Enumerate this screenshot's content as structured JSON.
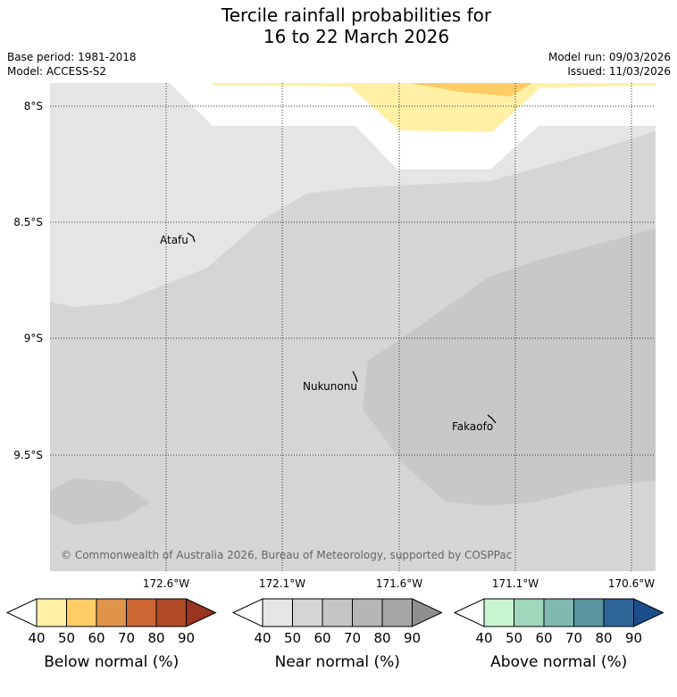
{
  "title_line1": "Tercile rainfall probabilities for",
  "title_line2": "16 to 22 March 2026",
  "base_period": "Base period: 1981-2018",
  "model": "Model: ACCESS-S2",
  "model_run": "Model run: 09/03/2026",
  "issued": "Issued: 11/03/2026",
  "lat_labels": [
    "8°S",
    "8.5°S",
    "9°S",
    "9.5°S"
  ],
  "lon_labels": [
    "172.6°W",
    "172.1°W",
    "171.6°W",
    "171.1°W",
    "170.6°W"
  ],
  "places": [
    "Atafu",
    "Nukunonu",
    "Fakaofo"
  ],
  "copyright": "© Commonwealth of Australia 2026, Bureau of Meteorology, supported by COSPPac",
  "colorbars": [
    {
      "label": "Below normal (%)",
      "ticks": [
        "40",
        "50",
        "60",
        "70",
        "80",
        "90"
      ],
      "colors": [
        "#ffffff",
        "#fff0a6",
        "#ffcc66",
        "#e0944a",
        "#cc6633",
        "#b04a26",
        "#993322"
      ]
    },
    {
      "label": "Near normal (%)",
      "ticks": [
        "40",
        "50",
        "60",
        "70",
        "80",
        "90"
      ],
      "colors": [
        "#ffffff",
        "#e5e5e5",
        "#d5d5d5",
        "#c5c5c5",
        "#b5b5b5",
        "#a5a5a5",
        "#8f8f8f"
      ]
    },
    {
      "label": "Above normal (%)",
      "ticks": [
        "40",
        "50",
        "60",
        "70",
        "80",
        "90"
      ],
      "colors": [
        "#ffffff",
        "#c8f5d0",
        "#a0d6bb",
        "#80b9af",
        "#5a94a0",
        "#2e6698",
        "#1a4e8a"
      ]
    }
  ],
  "colors": {
    "near40": "#e5e5e5",
    "near50": "#d5d5d5",
    "near60": "#c8c8c8",
    "below40": "#fff0a6",
    "below50": "#ffcc66",
    "grid": "#333333"
  }
}
